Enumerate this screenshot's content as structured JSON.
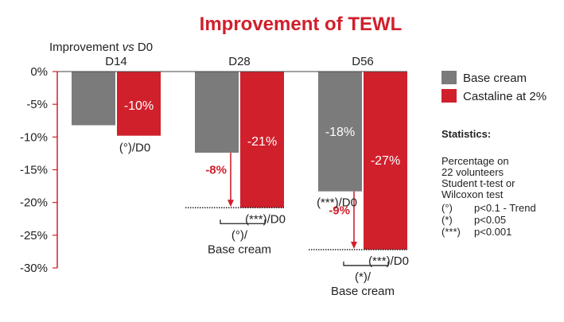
{
  "colors": {
    "base": "#7b7b7b",
    "castaline": "#d0202c",
    "axis": "#d0202c",
    "text": "#222222"
  },
  "chart_data": {
    "type": "bar",
    "title": "Improvement of TEWL",
    "ylabel_prefix": "Improvement ",
    "ylabel_vs": "vs",
    "ylabel_suffix": " D0",
    "ylim": [
      -30,
      0
    ],
    "yticks": [
      0,
      -5,
      -10,
      -15,
      -20,
      -25,
      -30
    ],
    "ytick_labels": [
      "0%",
      "-5%",
      "-10%",
      "-15%",
      "-20%",
      "-25%",
      "-30%"
    ],
    "categories": [
      "D14",
      "D28",
      "D56"
    ],
    "series": [
      {
        "name": "Base cream",
        "values": [
          -8.2,
          -12.4,
          -18.3
        ],
        "labels": [
          "",
          "",
          "-18%"
        ]
      },
      {
        "name": "Castaline at 2%",
        "values": [
          -9.8,
          -20.8,
          -27.2
        ],
        "labels": [
          "-10%",
          "-21%",
          "-27%"
        ]
      }
    ],
    "vs_d0_labels": [
      "(°)/D0",
      "(***)/D0",
      "(***)/D0"
    ],
    "base_vs_d0_labels": [
      "",
      "",
      "(***)/D0"
    ],
    "differences": [
      "",
      "-8%",
      "-9%"
    ],
    "vs_base_line1": [
      "",
      "(°)/",
      "(*)/"
    ],
    "vs_base_line2": [
      "",
      "Base cream",
      "Base cream"
    ],
    "legend_position": "right",
    "statistics": {
      "title": "Statistics:",
      "lines": [
        "Percentage on",
        "22 volunteers",
        "Student t-test or",
        "Wilcoxon test"
      ],
      "keys": [
        {
          "symbol": "(°)",
          "text": "p<0.1 - Trend"
        },
        {
          "symbol": "(*)",
          "text": "p<0.05"
        },
        {
          "symbol": "(***)",
          "text": "p<0.001"
        }
      ]
    }
  }
}
